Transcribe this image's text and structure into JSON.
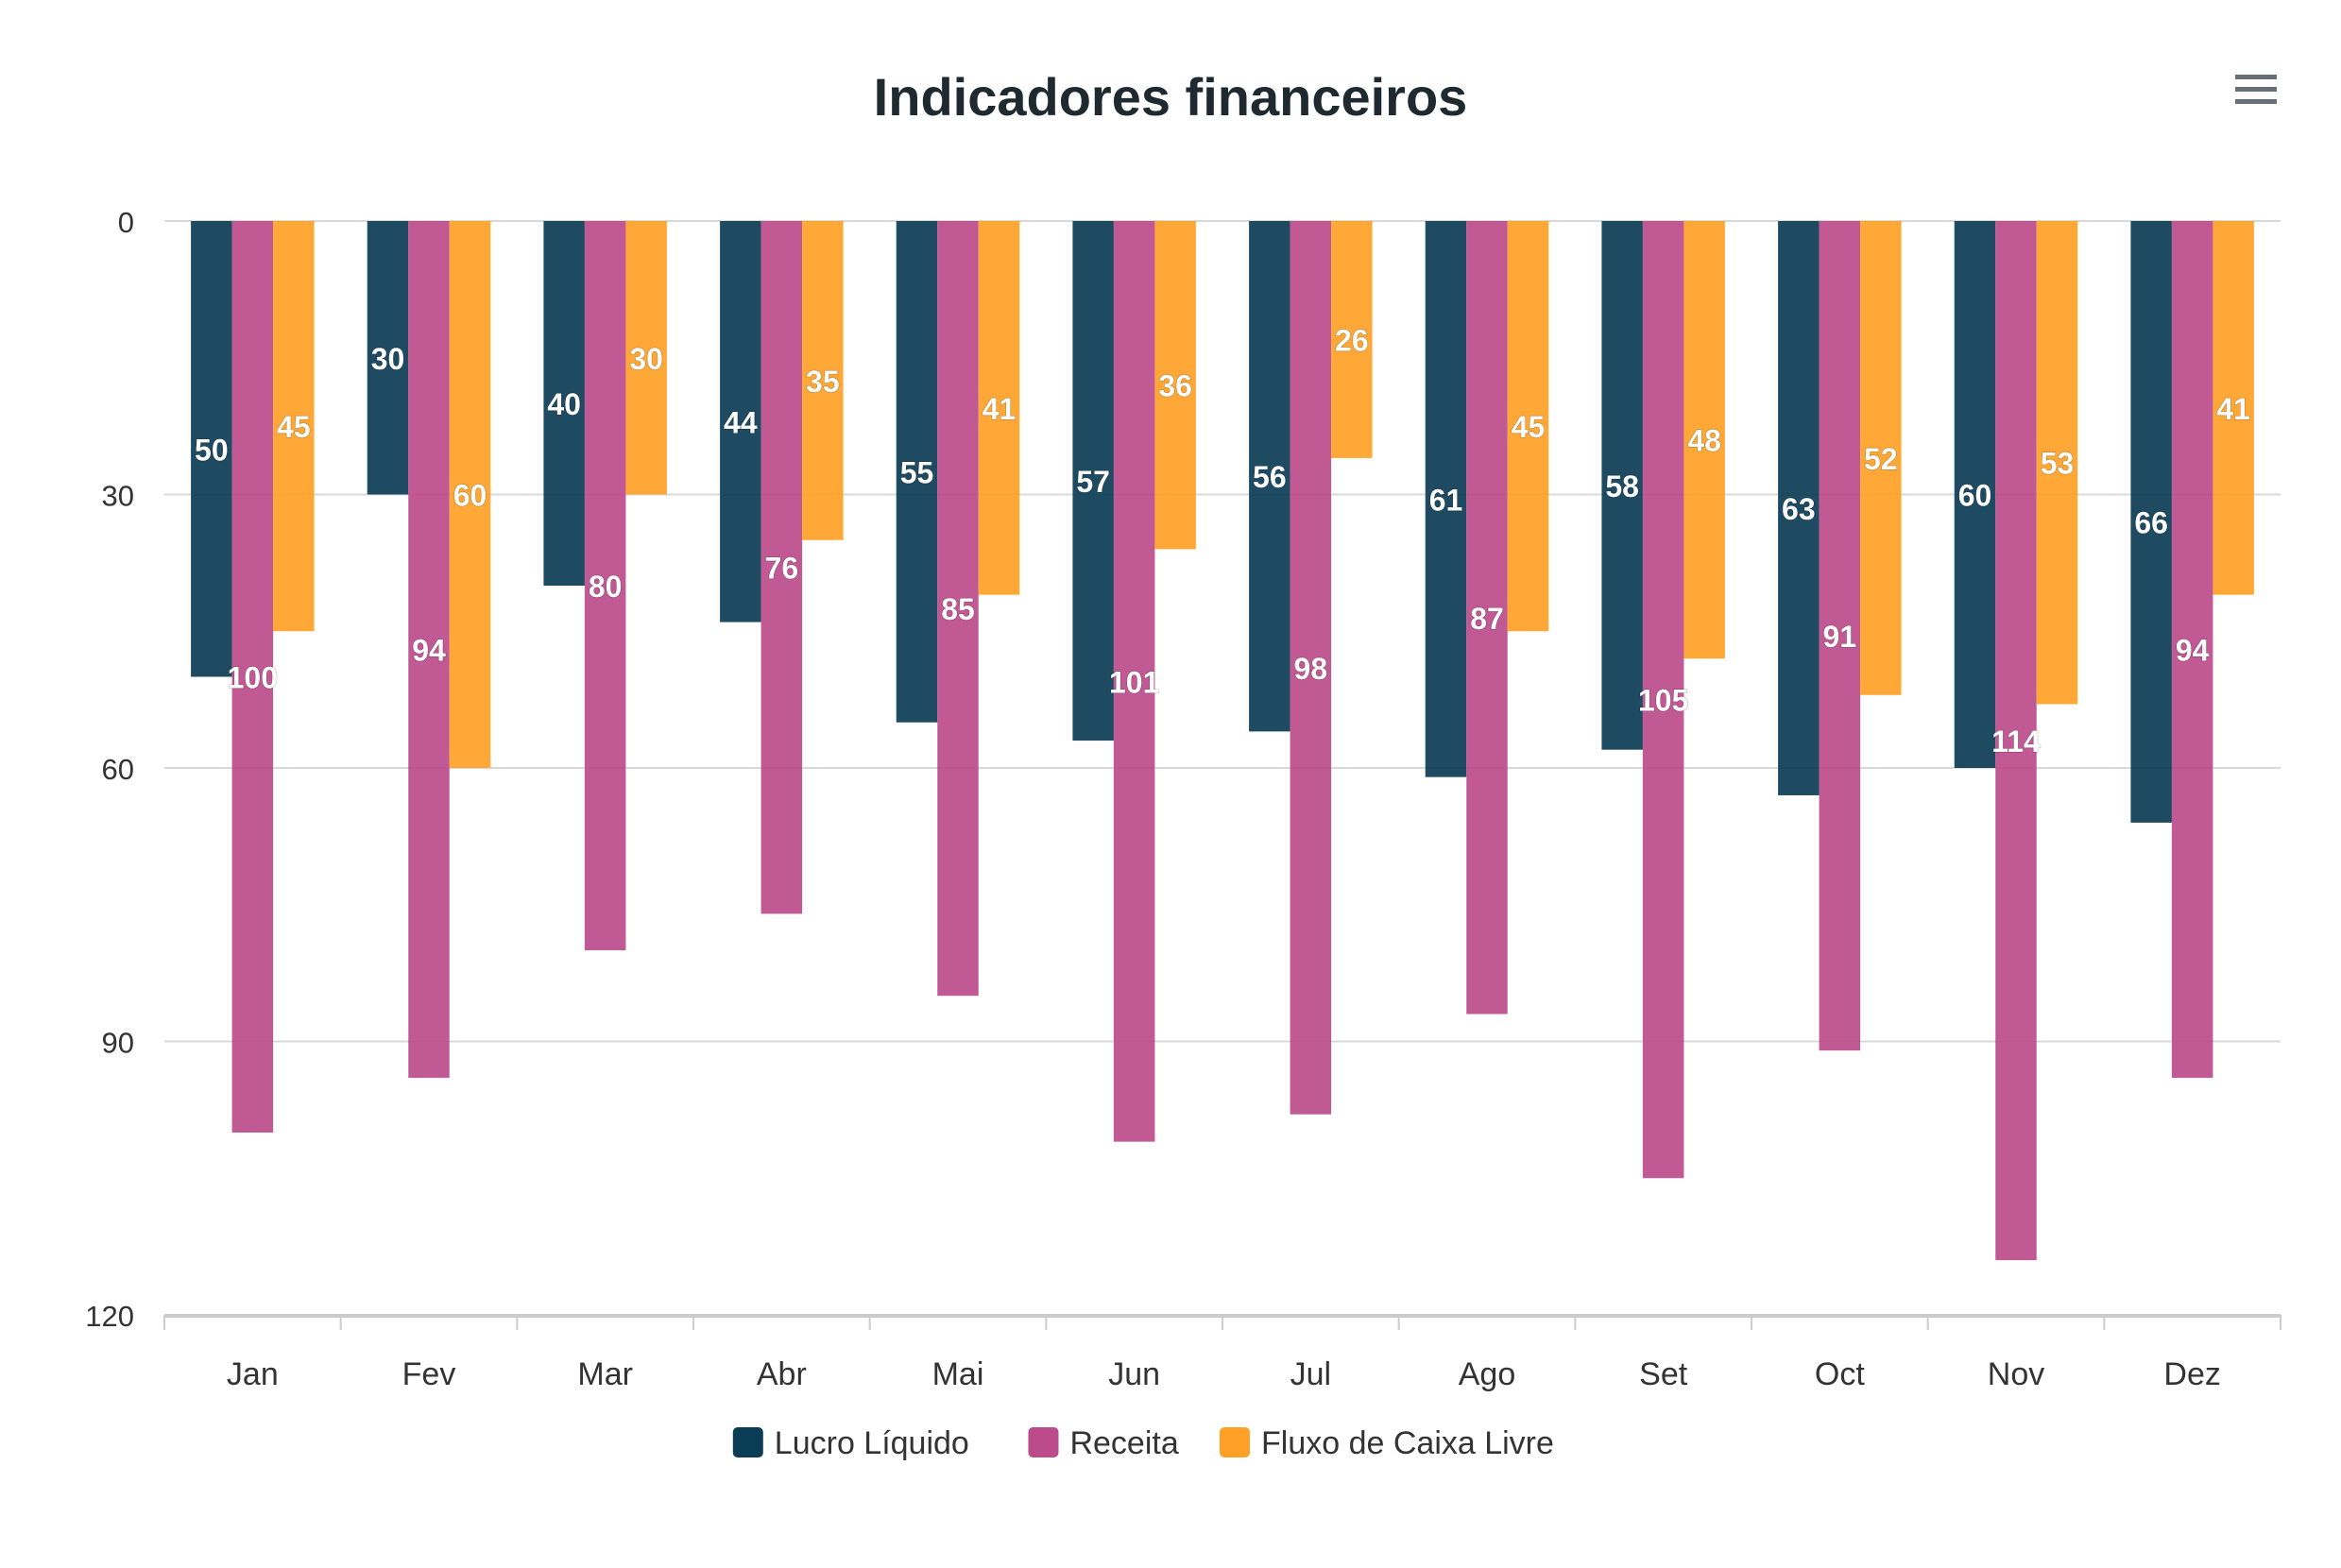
{
  "header": {
    "menu_icon": "hamburger-menu-icon"
  },
  "chart_data": {
    "type": "bar",
    "title": "Indicadores financeiros",
    "xlabel": "",
    "ylabel": "",
    "y_axis_reversed": true,
    "ylim": [
      0,
      120
    ],
    "yticks": [
      "0",
      "30",
      "60",
      "90",
      "120"
    ],
    "grid": true,
    "legend_placement": "bottom-center",
    "data_labels": true,
    "categories": [
      "Jan",
      "Fev",
      "Mar",
      "Abr",
      "Mai",
      "Jun",
      "Jul",
      "Ago",
      "Set",
      "Oct",
      "Nov",
      "Dez"
    ],
    "series": [
      {
        "name": "Lucro Líquido",
        "color": "#0b3c55",
        "values": [
          50,
          30,
          40,
          44,
          55,
          57,
          56,
          61,
          58,
          63,
          60,
          66
        ]
      },
      {
        "name": "Receita",
        "color": "#bc4b8c",
        "values": [
          100,
          94,
          80,
          76,
          85,
          101,
          98,
          87,
          105,
          91,
          114,
          94
        ]
      },
      {
        "name": "Fluxo de Caixa Livre",
        "color": "#ffa127",
        "values": [
          45,
          60,
          30,
          35,
          41,
          36,
          26,
          45,
          48,
          52,
          53,
          41
        ]
      }
    ]
  }
}
